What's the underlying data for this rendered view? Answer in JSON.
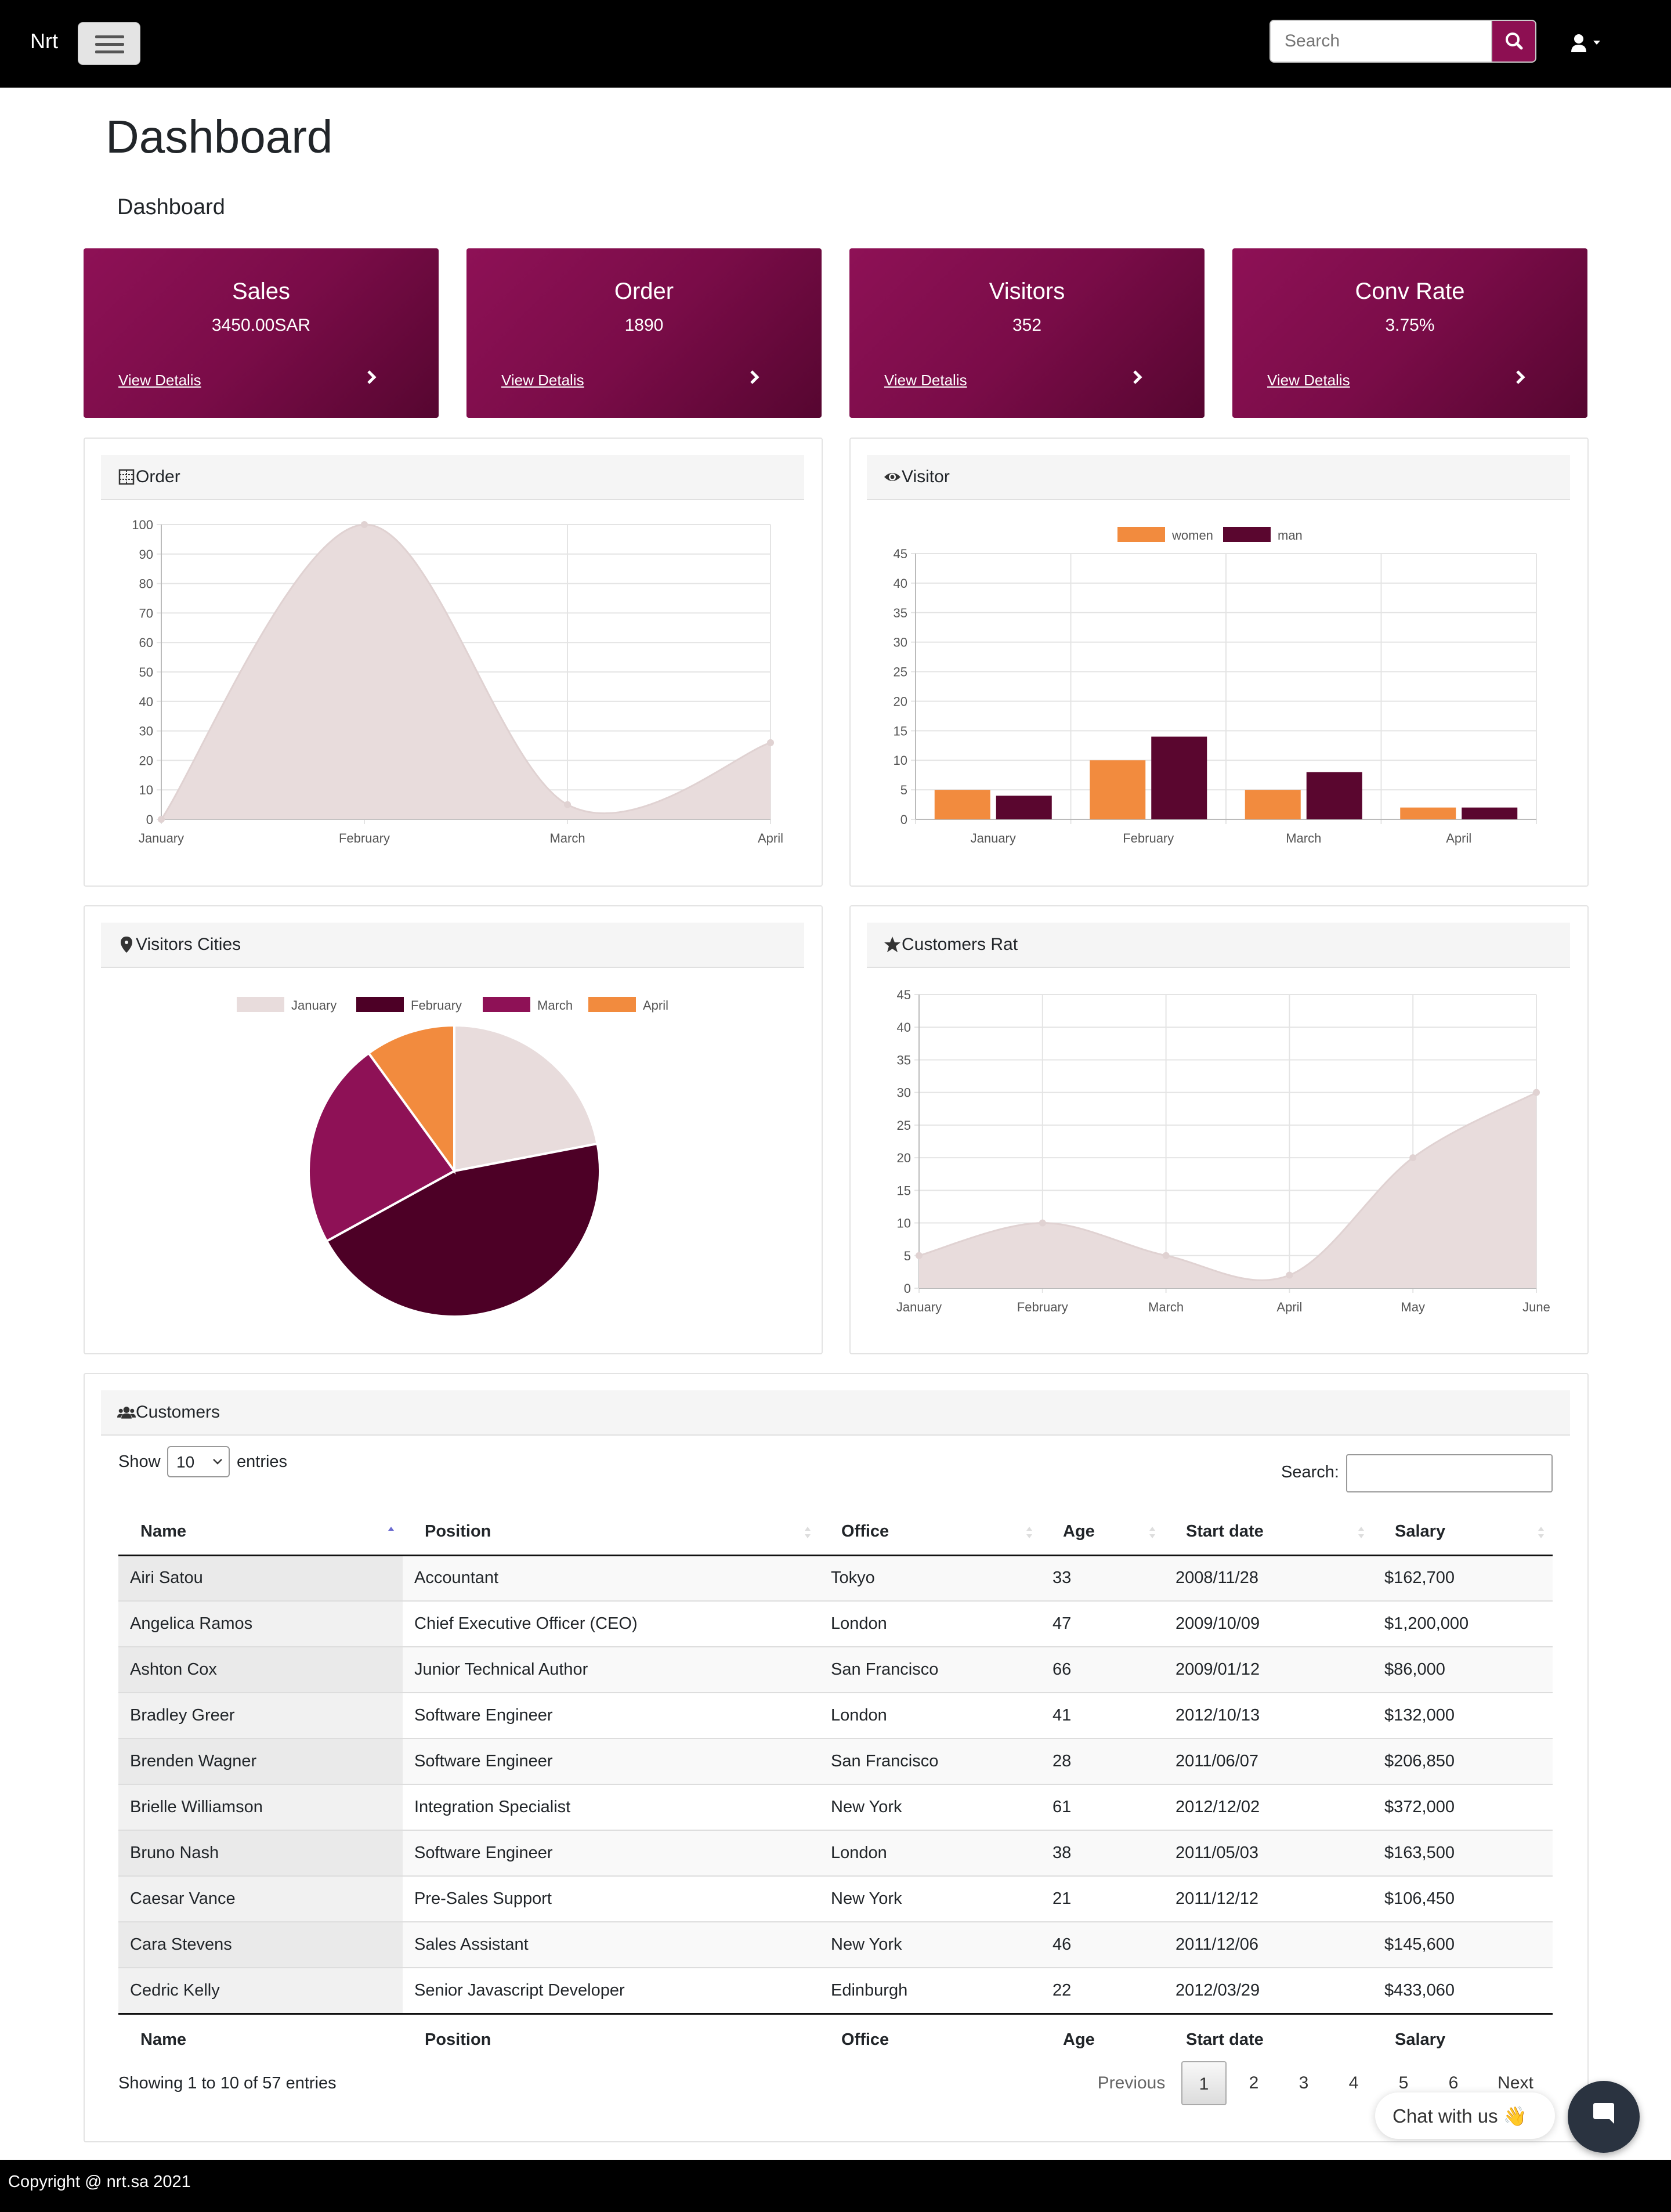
{
  "nav": {
    "brand": "Nrt",
    "search_placeholder": "Search"
  },
  "page": {
    "title": "Dashboard",
    "breadcrumb": "Dashboard"
  },
  "stat_cards": [
    {
      "title": "Sales",
      "value": "3450.00SAR",
      "link": "View Detalis"
    },
    {
      "title": "Order",
      "value": "1890",
      "link": "View Detalis"
    },
    {
      "title": "Visitors",
      "value": "352",
      "link": "View Detalis"
    },
    {
      "title": "Conv Rate",
      "value": "3.75%",
      "link": "View Detalis"
    }
  ],
  "panels": {
    "order": "Order",
    "visitor": "Visitor",
    "cities": "Visitors Cities",
    "rating": "Customers Rat",
    "customers": "Customers"
  },
  "chart_data": [
    {
      "type": "area",
      "title": "Order",
      "categories": [
        "January",
        "February",
        "March",
        "April"
      ],
      "values": [
        0,
        100,
        5,
        26
      ],
      "ylim": [
        0,
        100
      ],
      "yticks": [
        0,
        10,
        20,
        30,
        40,
        50,
        60,
        70,
        80,
        90,
        100
      ],
      "grid": true,
      "color": "#e8dcdc"
    },
    {
      "type": "bar",
      "title": "Visitor",
      "categories": [
        "January",
        "February",
        "March",
        "April"
      ],
      "series": [
        {
          "name": "women",
          "values": [
            5,
            10,
            5,
            2
          ],
          "color": "#f28b3e"
        },
        {
          "name": "man",
          "values": [
            4,
            14,
            8,
            2
          ],
          "color": "#5a062f"
        }
      ],
      "ylim": [
        0,
        45
      ],
      "yticks": [
        0,
        5,
        10,
        15,
        20,
        25,
        30,
        35,
        40,
        45
      ],
      "legend": "top",
      "grid": true
    },
    {
      "type": "pie",
      "title": "Visitors Cities",
      "labels": [
        "January",
        "February",
        "March",
        "April"
      ],
      "values": [
        22,
        45,
        23,
        10
      ],
      "colors": [
        "#e8dcdc",
        "#4d0026",
        "#8e1156",
        "#f28b3e"
      ],
      "legend": "top"
    },
    {
      "type": "area",
      "title": "Customers Rat",
      "categories": [
        "January",
        "February",
        "March",
        "April",
        "May",
        "June"
      ],
      "values": [
        5,
        10,
        5,
        2,
        20,
        30
      ],
      "ylim": [
        0,
        45
      ],
      "yticks": [
        0,
        5,
        10,
        15,
        20,
        25,
        30,
        35,
        40,
        45
      ],
      "grid": true,
      "color": "#e8dcdc"
    }
  ],
  "table": {
    "show_label": "Show",
    "length_value": "10",
    "entries_label": "entries",
    "search_label": "Search:",
    "columns": [
      "Name",
      "Position",
      "Office",
      "Age",
      "Start date",
      "Salary"
    ],
    "rows": [
      [
        "Airi Satou",
        "Accountant",
        "Tokyo",
        "33",
        "2008/11/28",
        "$162,700"
      ],
      [
        "Angelica Ramos",
        "Chief Executive Officer (CEO)",
        "London",
        "47",
        "2009/10/09",
        "$1,200,000"
      ],
      [
        "Ashton Cox",
        "Junior Technical Author",
        "San Francisco",
        "66",
        "2009/01/12",
        "$86,000"
      ],
      [
        "Bradley Greer",
        "Software Engineer",
        "London",
        "41",
        "2012/10/13",
        "$132,000"
      ],
      [
        "Brenden Wagner",
        "Software Engineer",
        "San Francisco",
        "28",
        "2011/06/07",
        "$206,850"
      ],
      [
        "Brielle Williamson",
        "Integration Specialist",
        "New York",
        "61",
        "2012/12/02",
        "$372,000"
      ],
      [
        "Bruno Nash",
        "Software Engineer",
        "London",
        "38",
        "2011/05/03",
        "$163,500"
      ],
      [
        "Caesar Vance",
        "Pre-Sales Support",
        "New York",
        "21",
        "2011/12/12",
        "$106,450"
      ],
      [
        "Cara Stevens",
        "Sales Assistant",
        "New York",
        "46",
        "2011/12/06",
        "$145,600"
      ],
      [
        "Cedric Kelly",
        "Senior Javascript Developer",
        "Edinburgh",
        "22",
        "2012/03/29",
        "$433,060"
      ]
    ],
    "info": "Showing 1 to 10 of 57 entries",
    "pagination": {
      "previous": "Previous",
      "pages": [
        "1",
        "2",
        "3",
        "4",
        "5",
        "6"
      ],
      "active": "1",
      "next": "Next"
    }
  },
  "chat": {
    "label": "Chat with us",
    "emoji": "👋"
  },
  "footer": {
    "copyright": "Copyright @ nrt.sa 2021"
  },
  "colors": {
    "brand": "#8d0f52",
    "brand_dark": "#560630",
    "accent_orange": "#f28b3e",
    "area_fill": "#e8dcdc"
  }
}
